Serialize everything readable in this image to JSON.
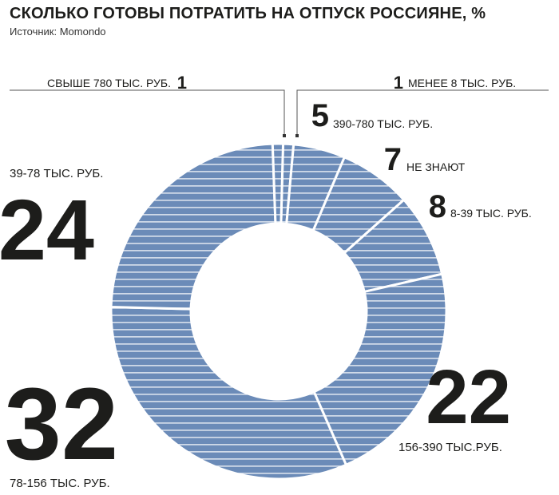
{
  "header": {
    "title": "СКОЛЬКО ГОТОВЫ ПОТРАТИТЬ НА ОТПУСК РОССИЯНЕ, %",
    "source": "Источник: Momondo"
  },
  "colors": {
    "slice": "#6b8bb8",
    "stripe": "#ffffff",
    "text": "#1d1d1b"
  },
  "chart_data": {
    "type": "donut",
    "title": "СКОЛЬКО ГОТОВЫ ПОТРАТИТЬ НА ОТПУСК РОССИЯНЕ, %",
    "unit": "%",
    "slices": [
      {
        "label": "МЕНЕЕ 8 ТЫС. РУБ.",
        "value": 1
      },
      {
        "label": "390-780 ТЫС. РУБ.",
        "value": 5
      },
      {
        "label": "НЕ ЗНАЮТ",
        "value": 7
      },
      {
        "label": "8-39 ТЫС. РУБ.",
        "value": 8
      },
      {
        "label": "156-390 ТЫС.РУБ.",
        "value": 22
      },
      {
        "label": "78-156 ТЫС. РУБ.",
        "value": 32
      },
      {
        "label": "39-78 ТЫС. РУБ.",
        "value": 24
      },
      {
        "label": "СВЫШЕ 780 ТЫС. РУБ.",
        "value": 1
      }
    ]
  }
}
